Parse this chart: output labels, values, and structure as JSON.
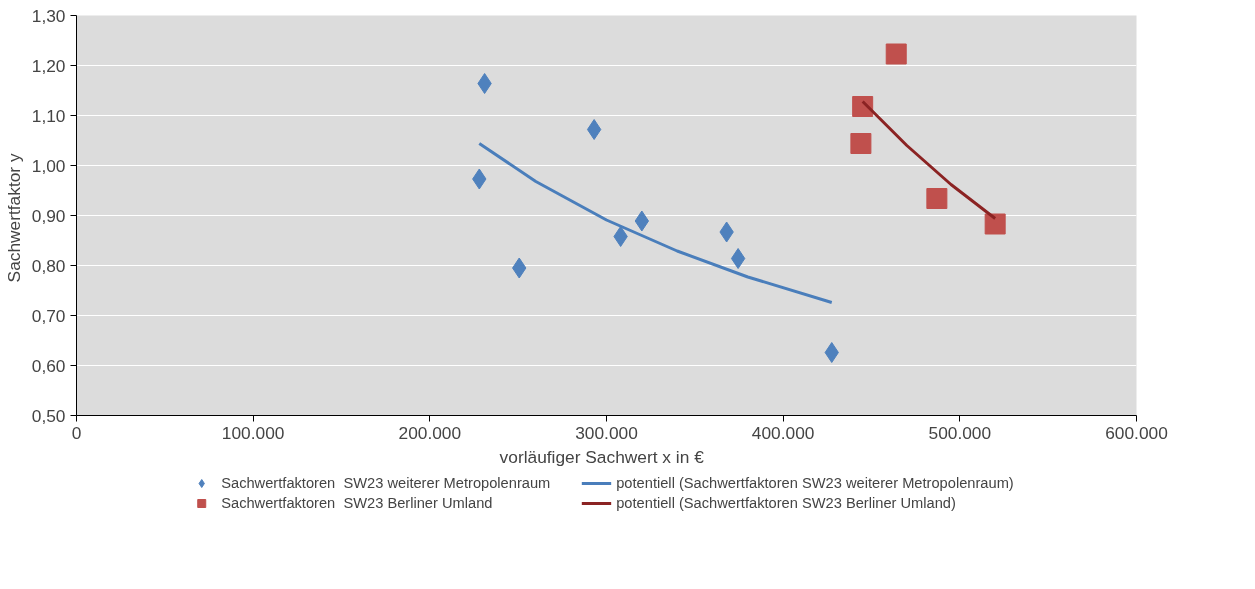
{
  "chart_data": {
    "type": "scatter",
    "xlabel": "vorläufiger Sachwert  x  in €",
    "ylabel": "Sachwertfaktor  y",
    "xlim": [
      0,
      600000
    ],
    "xticks": [
      {
        "value": 0,
        "label": "0"
      },
      {
        "value": 100000,
        "label": "100.000"
      },
      {
        "value": 200000,
        "label": "200.000"
      },
      {
        "value": 300000,
        "label": "300.000"
      },
      {
        "value": 400000,
        "label": "400.000"
      },
      {
        "value": 500000,
        "label": "500.000"
      },
      {
        "value": 600000,
        "label": "600.000"
      }
    ],
    "ylim": [
      0.5,
      1.3
    ],
    "yticks": [
      {
        "value": 0.5,
        "label": "0,50"
      },
      {
        "value": 0.6,
        "label": "0,60"
      },
      {
        "value": 0.7,
        "label": "0,70"
      },
      {
        "value": 0.8,
        "label": "0,80"
      },
      {
        "value": 0.9,
        "label": "0,90"
      },
      {
        "value": 1.0,
        "label": "1,00"
      },
      {
        "value": 1.1,
        "label": "1,10"
      },
      {
        "value": 1.2,
        "label": "1,20"
      },
      {
        "value": 1.3,
        "label": "1,30"
      }
    ],
    "grid": "y",
    "legend": "bottom",
    "series": [
      {
        "name": "Sachwertfaktoren  SW23 weiterer Metropolenraum",
        "marker": "diamond",
        "color": "#4f81bd",
        "x": [
          228000,
          231000,
          250600,
          293000,
          308000,
          320000,
          368000,
          374500,
          427500
        ],
        "values": [
          0.973,
          1.164,
          0.795,
          1.072,
          0.858,
          0.889,
          0.867,
          0.814,
          0.626
        ]
      },
      {
        "name": "potentiell (Sachwertfaktoren SW23 weiterer Metropolenraum)",
        "type": "line",
        "line_style": "solid",
        "color": "#4a7ebb",
        "x": [
          228000,
          260000,
          300000,
          340000,
          380000,
          427500
        ],
        "values": [
          1.044,
          0.968,
          0.891,
          0.829,
          0.777,
          0.726
        ]
      },
      {
        "name": "Sachwertfaktoren  SW23 Berliner Umland",
        "marker": "square",
        "color": "#c0504d",
        "x": [
          445000,
          444000,
          464000,
          487000,
          520000
        ],
        "values": [
          1.118,
          1.044,
          1.223,
          0.934,
          0.883
        ]
      },
      {
        "name": "potentiell (Sachwertfaktoren SW23 Berliner Umland)",
        "type": "line",
        "line_style": "solid",
        "color": "#8b2323",
        "x": [
          445000,
          470000,
          495000,
          520000
        ],
        "values": [
          1.128,
          1.04,
          0.962,
          0.894
        ]
      }
    ]
  }
}
